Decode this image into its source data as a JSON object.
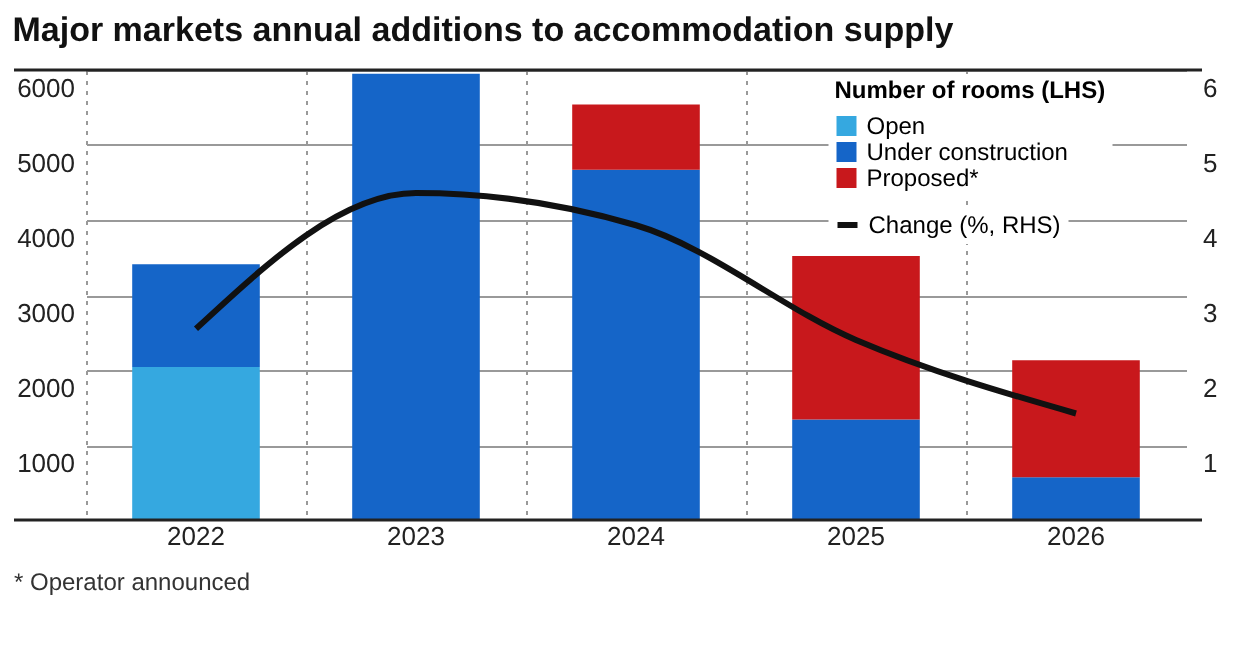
{
  "chart_data": {
    "type": "bar",
    "title": "Major markets annual additions to accommodation supply",
    "categories": [
      "2022",
      "2023",
      "2024",
      "2025",
      "2026"
    ],
    "stacked": true,
    "legend_title": "Number of rooms (LHS)",
    "series": [
      {
        "name": "Open",
        "color": "#35a8e0",
        "values": [
          2040,
          0,
          0,
          0,
          0
        ]
      },
      {
        "name": "Under construction",
        "color": "#1565c8",
        "values": [
          1370,
          5950,
          4670,
          1340,
          570
        ]
      },
      {
        "name": "Proposed*",
        "color": "#c8181c",
        "values": [
          0,
          0,
          870,
          2180,
          1560
        ]
      },
      {
        "name": "Change (%, RHS)",
        "type": "line",
        "axis": "y2",
        "color": "#111111",
        "values": [
          2.55,
          4.36,
          3.93,
          2.4,
          1.42
        ]
      }
    ],
    "ylim": [
      0,
      6000
    ],
    "yticks": [
      1000,
      2000,
      3000,
      4000,
      5000,
      6000
    ],
    "y2lim": [
      0,
      6
    ],
    "y2ticks": [
      1,
      2,
      3,
      4,
      5,
      6
    ],
    "grid": true,
    "legend": "top right",
    "annotations": [
      "* Operator announced"
    ]
  }
}
